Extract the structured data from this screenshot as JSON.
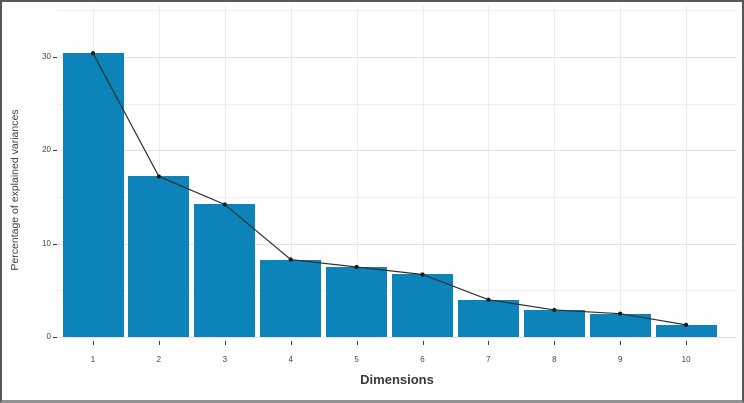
{
  "chart_data": {
    "type": "bar",
    "subtype": "scree-plot-with-line-overlay",
    "title": "",
    "xlabel": "Dimensions",
    "ylabel": "Percentage of explained variances",
    "categories": [
      "1",
      "2",
      "3",
      "4",
      "5",
      "6",
      "7",
      "8",
      "9",
      "10"
    ],
    "series": [
      {
        "name": "explained-variance-bars",
        "type": "bar",
        "values": [
          30.4,
          17.2,
          14.2,
          8.3,
          7.5,
          6.7,
          4.0,
          2.9,
          2.5,
          1.3
        ]
      },
      {
        "name": "explained-variance-line",
        "type": "line",
        "values": [
          30.4,
          17.2,
          14.2,
          8.3,
          7.5,
          6.7,
          4.0,
          2.9,
          2.5,
          1.3
        ]
      }
    ],
    "y_ticks": [
      0,
      10,
      20,
      30
    ],
    "y_minor_ticks": [
      5,
      15,
      25,
      35
    ],
    "ylim": [
      0,
      35.5
    ],
    "grid": "major-and-minor-horizontal-plus-vertical-majors",
    "legend": "none",
    "colors": {
      "bar_fill": "#0c83b9",
      "line": "#303030",
      "point": "#1a1a1a",
      "grid_major": "#e2e2e2",
      "grid_minor": "#f0f0f0",
      "grid_vertical": "#ececec",
      "tick": "#3c3c3c",
      "text": "#3d3d3d",
      "background": "#ffffff",
      "frame": "#56585b"
    }
  }
}
